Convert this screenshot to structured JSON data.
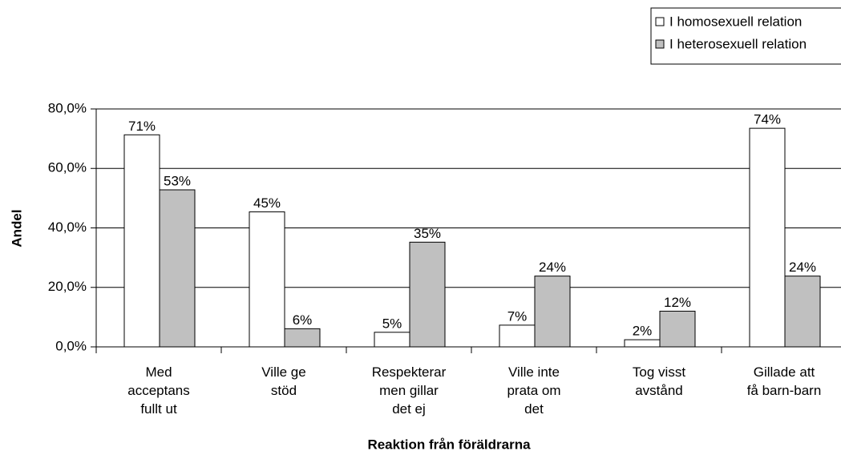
{
  "chart_data": {
    "type": "bar",
    "xlabel": "Reaktion från föräldrarna",
    "ylabel": "Andel",
    "categories": [
      "Med\nacceptans\nfullt ut",
      "Ville ge\nstöd",
      "Respekterar\nmen gillar\ndet ej",
      "Ville inte\nprata om\ndet",
      "Tog visst\navstånd",
      "Gillade att\nfå barn-barn"
    ],
    "series": [
      {
        "name": "I homosexuell relation",
        "color": "#ffffff",
        "values": [
          71.3,
          45.4,
          4.9,
          7.3,
          2.4,
          73.5
        ],
        "value_labels": [
          "71%",
          "45%",
          "5%",
          "7%",
          "2%",
          "74%"
        ]
      },
      {
        "name": "I heterosexuell relation",
        "color": "#c0c0c0",
        "values": [
          52.8,
          6.1,
          35.2,
          23.8,
          12.0,
          23.8
        ],
        "value_labels": [
          "53%",
          "6%",
          "35%",
          "24%",
          "12%",
          "24%"
        ]
      }
    ],
    "ylim": [
      0,
      80
    ],
    "yticks": [
      {
        "value": 0,
        "label": "0,0%"
      },
      {
        "value": 20,
        "label": "20,0%"
      },
      {
        "value": 40,
        "label": "40,0%"
      },
      {
        "value": 60,
        "label": "60,0%"
      },
      {
        "value": 80,
        "label": "80,0%"
      }
    ],
    "grid": true,
    "legend": "top-right"
  }
}
